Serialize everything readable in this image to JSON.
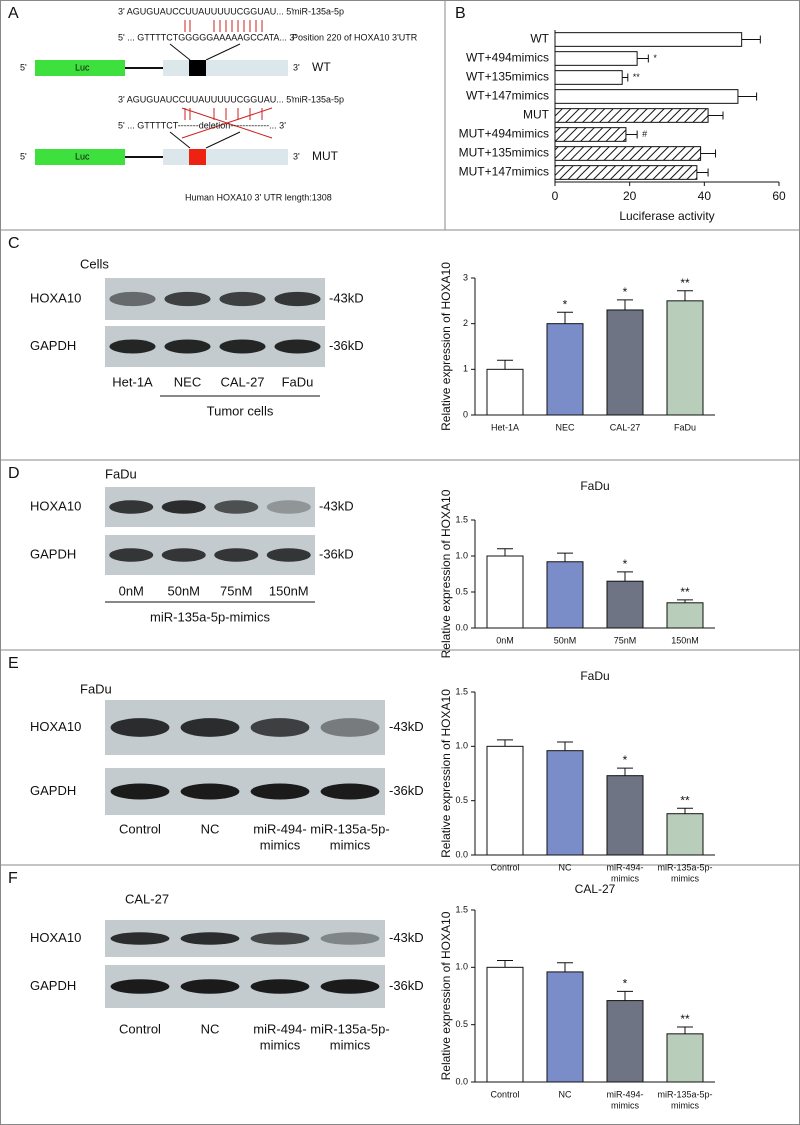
{
  "panel_labels": [
    "A",
    "B",
    "C",
    "D",
    "E",
    "F"
  ],
  "diagram": {
    "wt": {
      "mirna_seq": "3'  AGUGUAUCCUUAUUUUUCGGUAU...  5'",
      "mirna_name": "miR-135a-5p",
      "utr_seq": "5' ...  GTTTTCTGGGGGAAAAAGCCATA...  3'",
      "position": "Position 220 of HOXA10 3'UTR",
      "five": "5'",
      "luc": "Luc",
      "three": "3'",
      "label": "WT"
    },
    "mut": {
      "mirna_seq": "3'  AGUGUAUCCUUAUUUUUCGGUAU...  5'",
      "mirna_name": "miR-135a-5p",
      "utr_seq": "5' ...  GTTTTCT-------deletion-------------...  3'",
      "five": "5'",
      "luc": "Luc",
      "three": "3'",
      "label": "MUT"
    },
    "caption": "Human HOXA10  3' UTR length:1308"
  },
  "blots": [
    {
      "title": "Cells",
      "rows": [
        "HOXA10",
        "GAPDH"
      ],
      "sizes": [
        "-43kD",
        "-36kD"
      ],
      "lanes": [
        "Het-1A",
        "NEC",
        "CAL-27",
        "FaDu"
      ],
      "group": "Tumor cells"
    },
    {
      "title": "FaDu",
      "rows": [
        "HOXA10",
        "GAPDH"
      ],
      "sizes": [
        "-43kD",
        "-36kD"
      ],
      "lanes": [
        "0nM",
        "50nM",
        "75nM",
        "150nM"
      ],
      "group": "miR-135a-5p-mimics"
    },
    {
      "title": "FaDu",
      "rows": [
        "HOXA10",
        "GAPDH"
      ],
      "sizes": [
        "-43kD",
        "-36kD"
      ],
      "lanes": [
        "Control",
        "NC",
        [
          "miR-494-",
          "mimics"
        ],
        [
          "miR-135a-5p-",
          "mimics"
        ]
      ]
    },
    {
      "title": "CAL-27",
      "rows": [
        "HOXA10",
        "GAPDH"
      ],
      "sizes": [
        "-43kD",
        "-36kD"
      ],
      "lanes": [
        "Control",
        "NC",
        [
          "miR-494-",
          "mimics"
        ],
        [
          "miR-135a-5p-",
          "mimics"
        ]
      ]
    }
  ],
  "chart_data": [
    {
      "type": "barh",
      "xlabel": "Luciferase activity",
      "categories": [
        "WT",
        "WT+494mimics",
        "WT+135mimics",
        "WT+147mimics",
        "MUT",
        "MUT+494mimics",
        "MUT+135mimics",
        "MUT+147mimics"
      ],
      "values": [
        50,
        22,
        18,
        49,
        41,
        19,
        39,
        38
      ],
      "errors": [
        5,
        3,
        1.5,
        5,
        4,
        3,
        4,
        3
      ],
      "annotations": [
        null,
        "*",
        "**",
        null,
        null,
        "#",
        null,
        null
      ],
      "hatch": [
        false,
        false,
        false,
        false,
        true,
        true,
        true,
        true
      ],
      "color": "#ffffff",
      "xlim": [
        0,
        60
      ],
      "xticks": [
        0,
        20,
        40,
        60
      ]
    },
    {
      "type": "bar",
      "ylabel": "Relative expression of HOXA10",
      "categories": [
        "Het-1A",
        "NEC",
        "CAL-27",
        "FaDu"
      ],
      "values": [
        1,
        2.0,
        2.3,
        2.5
      ],
      "errors": [
        0.2,
        0.25,
        0.22,
        0.22
      ],
      "annotations": [
        null,
        "*",
        "*",
        "**"
      ],
      "colors": [
        "#ffffff",
        "#7b8dc9",
        "#6e7484",
        "#b9cdbb"
      ],
      "ylim": [
        0,
        3
      ],
      "yticks": [
        0,
        1,
        2,
        3
      ]
    },
    {
      "type": "bar",
      "title": "FaDu",
      "ylabel": "Relative expression of HOXA10",
      "categories": [
        "0nM",
        "50nM",
        "75nM",
        "150nM"
      ],
      "values": [
        1.0,
        0.92,
        0.65,
        0.35
      ],
      "errors": [
        0.1,
        0.12,
        0.13,
        0.04
      ],
      "annotations": [
        null,
        null,
        "*",
        "**"
      ],
      "colors": [
        "#ffffff",
        "#7b8dc9",
        "#6e7484",
        "#b9cdbb"
      ],
      "ylim": [
        0,
        1.5
      ],
      "yticks": [
        {
          "value": 0,
          "label": "0.0"
        },
        {
          "value": 0.5,
          "label": "0.5"
        },
        {
          "value": 1,
          "label": "1.0"
        },
        {
          "value": 1.5,
          "label": "1.5"
        }
      ]
    },
    {
      "type": "bar",
      "title": "FaDu",
      "ylabel": "Relative expression of HOXA10",
      "categories": [
        "Control",
        "NC",
        [
          "miR-494-",
          "mimics"
        ],
        [
          "miR-135a-5p-",
          "mimics"
        ]
      ],
      "values": [
        1.0,
        0.96,
        0.73,
        0.38
      ],
      "errors": [
        0.06,
        0.08,
        0.07,
        0.05
      ],
      "annotations": [
        null,
        null,
        "*",
        "**"
      ],
      "colors": [
        "#ffffff",
        "#7b8dc9",
        "#6e7484",
        "#b9cdbb"
      ],
      "ylim": [
        0,
        1.5
      ],
      "yticks": [
        {
          "value": 0,
          "label": "0.0"
        },
        {
          "value": 0.5,
          "label": "0.5"
        },
        {
          "value": 1,
          "label": "1.0"
        },
        {
          "value": 1.5,
          "label": "1.5"
        }
      ]
    },
    {
      "type": "bar",
      "title": "CAL-27",
      "ylabel": "Relative expression of HOXA10",
      "categories": [
        "Control",
        "NC",
        [
          "miR-494-",
          "mimics"
        ],
        [
          "miR-135a-5p-",
          "mimics"
        ]
      ],
      "values": [
        1.0,
        0.96,
        0.71,
        0.42
      ],
      "errors": [
        0.06,
        0.08,
        0.08,
        0.06
      ],
      "annotations": [
        null,
        null,
        "*",
        "**"
      ],
      "colors": [
        "#ffffff",
        "#7b8dc9",
        "#6e7484",
        "#b9cdbb"
      ],
      "ylim": [
        0,
        1.5
      ],
      "yticks": [
        {
          "value": 0,
          "label": "0.0"
        },
        {
          "value": 0.5,
          "label": "0.5"
        },
        {
          "value": 1,
          "label": "1.0"
        },
        {
          "value": 1.5,
          "label": "1.5"
        }
      ]
    }
  ]
}
